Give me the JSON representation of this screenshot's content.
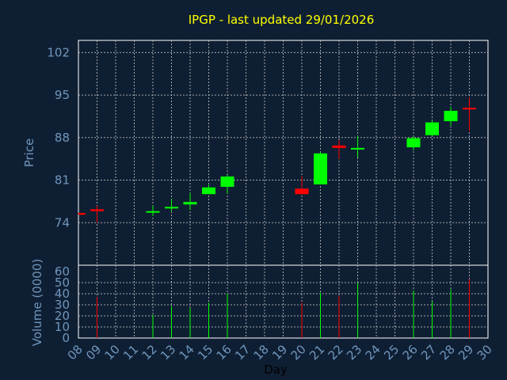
{
  "chart_data": {
    "type": "candlestick",
    "title": "IPGP - last updated 29/01/2026",
    "xlabel": "Day",
    "price_panel": {
      "ylabel": "Price",
      "yticks": [
        74,
        81,
        88,
        95,
        102
      ],
      "ylim": [
        67,
        104
      ]
    },
    "volume_panel": {
      "ylabel": "Volume (0000)",
      "yticks": [
        0,
        10,
        20,
        30,
        40,
        50,
        60
      ],
      "ylim": [
        0,
        60
      ]
    },
    "x_ticks": [
      "08",
      "09",
      "10",
      "11",
      "12",
      "13",
      "14",
      "15",
      "16",
      "17",
      "18",
      "19",
      "20",
      "21",
      "22",
      "23",
      "24",
      "25",
      "26",
      "27",
      "28",
      "29",
      "30"
    ],
    "candles": [
      {
        "day": 8,
        "open": 75.6,
        "high": 75.6,
        "low": 75.4,
        "close": 75.3,
        "volume": 0
      },
      {
        "day": 9,
        "open": 76.2,
        "high": 76.8,
        "low": 74.0,
        "close": 75.9,
        "volume": 37
      },
      {
        "day": 12,
        "open": 75.8,
        "high": 76.8,
        "low": 75.1,
        "close": 75.9,
        "volume": 21
      },
      {
        "day": 13,
        "open": 76.4,
        "high": 77.9,
        "low": 75.9,
        "close": 76.6,
        "volume": 29
      },
      {
        "day": 14,
        "open": 77.0,
        "high": 78.9,
        "low": 76.1,
        "close": 77.4,
        "volume": 27
      },
      {
        "day": 15,
        "open": 78.7,
        "high": 80.2,
        "low": 78.7,
        "close": 79.8,
        "volume": 32
      },
      {
        "day": 16,
        "open": 79.9,
        "high": 81.9,
        "low": 78.8,
        "close": 81.6,
        "volume": 40
      },
      {
        "day": 20,
        "open": 79.6,
        "high": 81.6,
        "low": 78.6,
        "close": 78.7,
        "volume": 32
      },
      {
        "day": 21,
        "open": 80.3,
        "high": 85.6,
        "low": 80.3,
        "close": 85.4,
        "volume": 41
      },
      {
        "day": 22,
        "open": 86.7,
        "high": 87.6,
        "low": 84.5,
        "close": 86.3,
        "volume": 38
      },
      {
        "day": 23,
        "open": 86.1,
        "high": 88.3,
        "low": 84.7,
        "close": 86.3,
        "volume": 50
      },
      {
        "day": 26,
        "open": 86.4,
        "high": 88.2,
        "low": 85.9,
        "close": 87.9,
        "volume": 43
      },
      {
        "day": 27,
        "open": 88.4,
        "high": 90.8,
        "low": 88.3,
        "close": 90.5,
        "volume": 33
      },
      {
        "day": 28,
        "open": 90.7,
        "high": 93.1,
        "low": 90.0,
        "close": 92.4,
        "volume": 44
      },
      {
        "day": 29,
        "open": 92.9,
        "high": 94.6,
        "low": 89.1,
        "close": 92.7,
        "volume": 53
      }
    ],
    "grid": true
  },
  "colors": {
    "background": "#0f1f33",
    "panel_border": "#ffffff",
    "title": "#ffff00",
    "axis_text": "#6f96bd",
    "grid": "#c8c8c8",
    "up": "#00ff00",
    "down": "#ff0000"
  }
}
